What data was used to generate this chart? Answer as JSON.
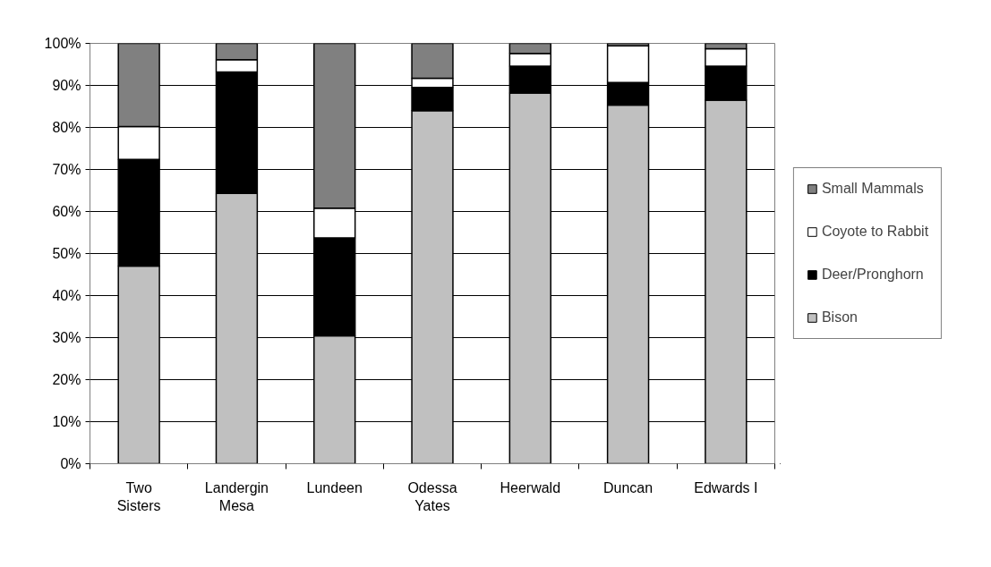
{
  "chart_data": {
    "type": "bar",
    "stacked": true,
    "categories": [
      "Two\nSisters",
      "Landergin\nMesa",
      "Lundeen",
      "Odessa\nYates",
      "Heerwald",
      "Duncan",
      "Edwards I"
    ],
    "series": [
      {
        "name": "Bison",
        "color": "#c0c0c0",
        "values": [
          47.0,
          64.3,
          30.4,
          84.0,
          88.2,
          85.3,
          86.5
        ]
      },
      {
        "name": "Deer/Pronghorn",
        "color": "#000000",
        "values": [
          25.4,
          28.9,
          23.3,
          5.5,
          6.4,
          5.4,
          8.1
        ]
      },
      {
        "name": "Coyote to Rabbit",
        "color": "#ffffff",
        "values": [
          7.8,
          2.9,
          7.1,
          2.2,
          3.0,
          8.7,
          4.1
        ]
      },
      {
        "name": "Small Mammals",
        "color": "#808080",
        "values": [
          19.8,
          3.9,
          39.2,
          8.3,
          2.4,
          0.6,
          1.3
        ]
      }
    ],
    "ylim": [
      0,
      100
    ],
    "yticks": [
      {
        "value": 0,
        "label": "0%"
      },
      {
        "value": 10,
        "label": "10%"
      },
      {
        "value": 20,
        "label": "20%"
      },
      {
        "value": 30,
        "label": "30%"
      },
      {
        "value": 40,
        "label": "40%"
      },
      {
        "value": 50,
        "label": "50%"
      },
      {
        "value": 60,
        "label": "60%"
      },
      {
        "value": 70,
        "label": "70%"
      },
      {
        "value": 80,
        "label": "80%"
      },
      {
        "value": 90,
        "label": "90%"
      },
      {
        "value": 100,
        "label": "100%"
      }
    ],
    "grid": "y",
    "legend": "right"
  }
}
